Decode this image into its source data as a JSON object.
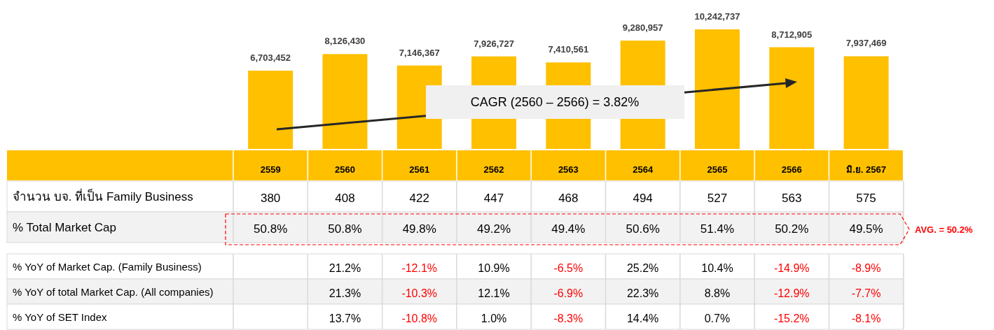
{
  "chart_data": [
    {
      "type": "bar",
      "categories": [
        "2559",
        "2560",
        "2561",
        "2562",
        "2563",
        "2564",
        "2565",
        "2566",
        "มิ.ย. 2567"
      ],
      "values": [
        6703452,
        8126430,
        7146367,
        7926727,
        7410561,
        9280957,
        10242737,
        8712905,
        7937469
      ],
      "color": "#ffc000",
      "value_labels": [
        "6,703,452",
        "8,126,430",
        "7,146,367",
        "7,926,727",
        "7,410,561",
        "9,280,957",
        "10,242,737",
        "8,712,905",
        "7,937,469"
      ],
      "annotations": [
        "CAGR (2560 – 2566) = 3.82%"
      ]
    },
    {
      "type": "heatmap",
      "categories": [
        null,
        null,
        null,
        null,
        null,
        null,
        null,
        null,
        null
      ],
      "y_categories": [
        "จำนวน บจ. ที่เป็น Family Business",
        "% Total Market Cap"
      ],
      "cells": [
        [
          380,
          408,
          422,
          447,
          468,
          494,
          527,
          563,
          575
        ],
        [
          50.8,
          50.8,
          49.8,
          49.2,
          49.4,
          50.6,
          51.4,
          50.2,
          49.5
        ]
      ],
      "cell_labels": [
        [
          "380",
          "408",
          "422",
          "447",
          "468",
          "494",
          "527",
          "563",
          "575"
        ],
        [
          "50.8%",
          "50.8%",
          "49.8%",
          "49.2%",
          "49.4%",
          "50.6%",
          "51.4%",
          "50.2%",
          "49.5%"
        ]
      ],
      "annotations": [
        "AVG. = 50.2%"
      ]
    },
    {
      "type": "heatmap",
      "categories": [
        null,
        null,
        null,
        null,
        null,
        null,
        null,
        null,
        null
      ],
      "y_categories": [
        "% YoY of Market Cap. (Family Business)",
        "% YoY of total Market Cap. (All companies)",
        "% YoY of SET Index"
      ],
      "cells": [
        [
          null,
          21.2,
          -12.1,
          10.9,
          -6.5,
          25.2,
          10.4,
          -14.9,
          -8.9
        ],
        [
          null,
          21.3,
          -10.3,
          12.1,
          -6.9,
          22.3,
          8.8,
          -12.9,
          -7.7
        ],
        [
          null,
          13.7,
          -10.8,
          1.0,
          -8.3,
          14.4,
          0.7,
          -15.2,
          -8.1
        ]
      ],
      "cell_labels": [
        [
          null,
          "21.2%",
          "-12.1%",
          "10.9%",
          "-6.5%",
          "25.2%",
          "10.4%",
          "-14.9%",
          "-8.9%"
        ],
        [
          null,
          "21.3%",
          "-10.3%",
          "12.1%",
          "-6.9%",
          "22.3%",
          "8.8%",
          "-12.9%",
          "-7.7%"
        ],
        [
          null,
          "13.7%",
          "-10.8%",
          "1.0%",
          "-8.3%",
          "14.4%",
          "0.7%",
          "-15.2%",
          "-8.1%"
        ]
      ]
    }
  ]
}
